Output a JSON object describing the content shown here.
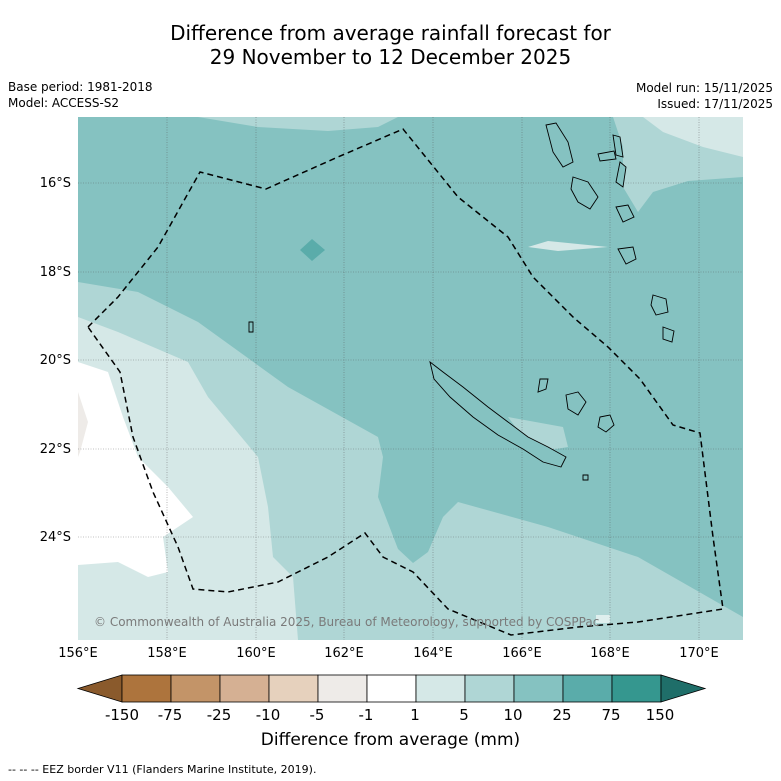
{
  "title": {
    "line1": "Difference from average rainfall forecast for",
    "line2": "29 November to 12 December 2025"
  },
  "meta": {
    "base_period": "Base period: 1981-2018",
    "model": "Model: ACCESS-S2",
    "model_run": "Model run: 15/11/2025",
    "issued": "Issued: 17/11/2025"
  },
  "map": {
    "lat_labels": [
      "16°S",
      "18°S",
      "20°S",
      "22°S",
      "24°S"
    ],
    "lon_labels": [
      "156°E",
      "158°E",
      "160°E",
      "162°E",
      "164°E",
      "166°E",
      "168°E",
      "170°E"
    ],
    "copyright": "© Commonwealth of Australia 2025, Bureau of Meteorology, supported by COSPPac"
  },
  "colorbar": {
    "labels": [
      "-150",
      "-75",
      "-25",
      "-10",
      "-5",
      "-1",
      "1",
      "5",
      "10",
      "25",
      "75",
      "150"
    ],
    "colors": [
      "#8a5a2c",
      "#ad743d",
      "#c39468",
      "#d5b093",
      "#e6d1bd",
      "#eeebe8",
      "#ffffff",
      "#d5e8e7",
      "#afd6d5",
      "#85c2c1",
      "#5aacaa",
      "#35978f",
      "#1f6e69"
    ],
    "title": "Difference from average (mm)"
  },
  "legend_note": "--  --  -- EEZ border V11 (Flanders Marine Institute, 2019)."
}
